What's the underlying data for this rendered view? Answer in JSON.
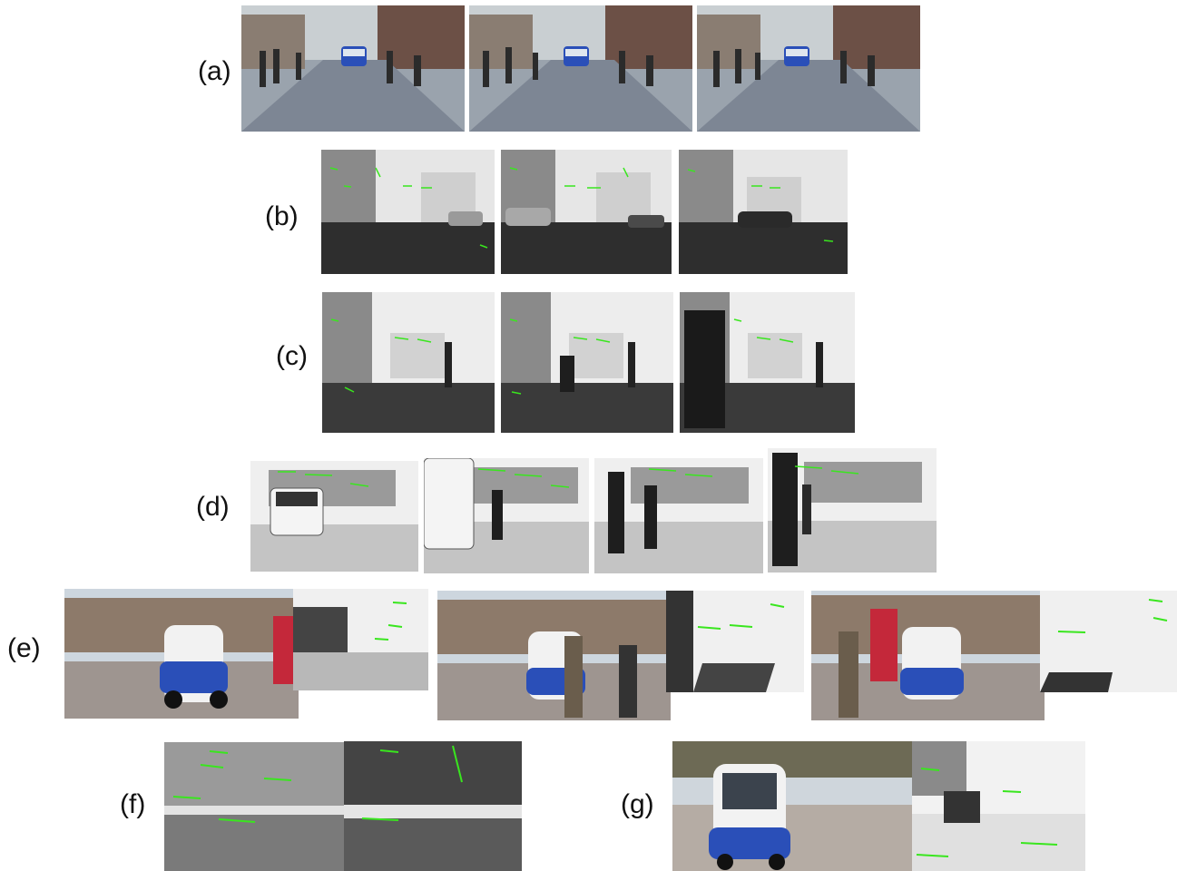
{
  "rows": {
    "a": {
      "label": "(a)"
    },
    "b": {
      "label": "(b)"
    },
    "c": {
      "label": "(c)"
    },
    "d": {
      "label": "(d)"
    },
    "e": {
      "label": "(e)"
    },
    "f": {
      "label": "(f)"
    },
    "g": {
      "label": "(g)"
    }
  },
  "colors": {
    "feature_track": "#39e61e",
    "vehicle_blue": "#2a4fb8",
    "sky_grey": "#eeeeee"
  }
}
